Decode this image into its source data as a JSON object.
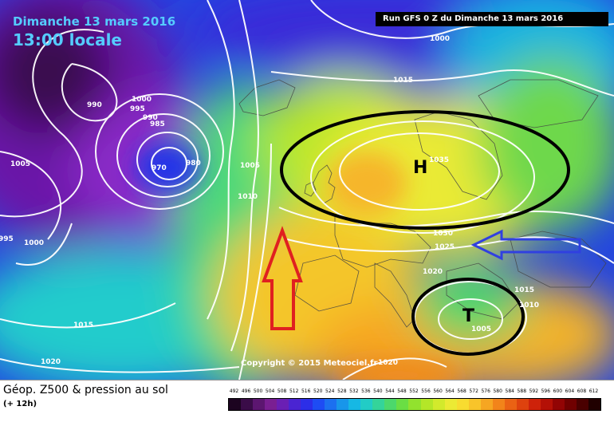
{
  "header": {
    "date_line": "Dimanche 13 mars 2016",
    "time_line": "13:00 locale",
    "run_info": "Run GFS 0 Z du Dimanche 13 mars 2016"
  },
  "copyright": "Copyright © 2015 Meteociel.fr",
  "isobar_labels": [
    {
      "text": "1000",
      "pos": [
        549,
        50
      ]
    },
    {
      "text": "1015",
      "pos": [
        503,
        102
      ]
    },
    {
      "text": "990",
      "pos": [
        119,
        133
      ]
    },
    {
      "text": "1000",
      "pos": [
        175,
        126
      ]
    },
    {
      "text": "995",
      "pos": [
        173,
        138
      ]
    },
    {
      "text": "990",
      "pos": [
        189,
        149
      ]
    },
    {
      "text": "985",
      "pos": [
        198,
        157
      ]
    },
    {
      "text": "970",
      "pos": [
        200,
        212
      ]
    },
    {
      "text": "980",
      "pos": [
        243,
        206
      ]
    },
    {
      "text": "1005",
      "pos": [
        23,
        207
      ]
    },
    {
      "text": "1005",
      "pos": [
        311,
        209
      ]
    },
    {
      "text": "1010",
      "pos": [
        308,
        248
      ]
    },
    {
      "text": "1035",
      "pos": [
        548,
        202
      ]
    },
    {
      "text": "1030",
      "pos": [
        553,
        294
      ]
    },
    {
      "text": "1025",
      "pos": [
        555,
        311
      ]
    },
    {
      "text": "1020",
      "pos": [
        540,
        342
      ]
    },
    {
      "text": "1015",
      "pos": [
        655,
        365
      ]
    },
    {
      "text": "1010",
      "pos": [
        661,
        384
      ]
    },
    {
      "text": "1005",
      "pos": [
        601,
        414
      ]
    },
    {
      "text": "995",
      "pos": [
        8,
        301
      ]
    },
    {
      "text": "1000",
      "pos": [
        40,
        306
      ]
    },
    {
      "text": "1015",
      "pos": [
        102,
        409
      ]
    },
    {
      "text": "1020",
      "pos": [
        61,
        455
      ]
    },
    {
      "text": "1020",
      "pos": [
        484,
        456
      ]
    }
  ],
  "pressure_centers": [
    {
      "letter": "H",
      "pos": [
        526,
        211
      ]
    },
    {
      "letter": "T",
      "pos": [
        588,
        397
      ]
    }
  ],
  "footer": {
    "title": "Géop. Z500 & pression au sol",
    "subtitle": "(+ 12h)"
  },
  "legend": {
    "labels": [
      "492",
      "496",
      "500",
      "504",
      "508",
      "512",
      "516",
      "520",
      "524",
      "528",
      "532",
      "536",
      "540",
      "544",
      "548",
      "552",
      "556",
      "560",
      "564",
      "568",
      "572",
      "576",
      "580",
      "584",
      "588",
      "592",
      "596",
      "600",
      "604",
      "608",
      "612"
    ],
    "colors": [
      "#1c0420",
      "#3a0c48",
      "#5c1670",
      "#7a1f92",
      "#6a1fb4",
      "#4a24d2",
      "#2c2ee8",
      "#1e4cf4",
      "#1c70f0",
      "#1896ea",
      "#16b8e4",
      "#22ccc6",
      "#34d49a",
      "#4cd86c",
      "#6ade44",
      "#92e22e",
      "#b4e628",
      "#d2ea2c",
      "#ecea34",
      "#f8dc30",
      "#f8c42a",
      "#f6a622",
      "#f2841a",
      "#ea6214",
      "#de420e",
      "#ce220a",
      "#b41006",
      "#920404",
      "#700000",
      "#4a0000",
      "#200000"
    ]
  }
}
